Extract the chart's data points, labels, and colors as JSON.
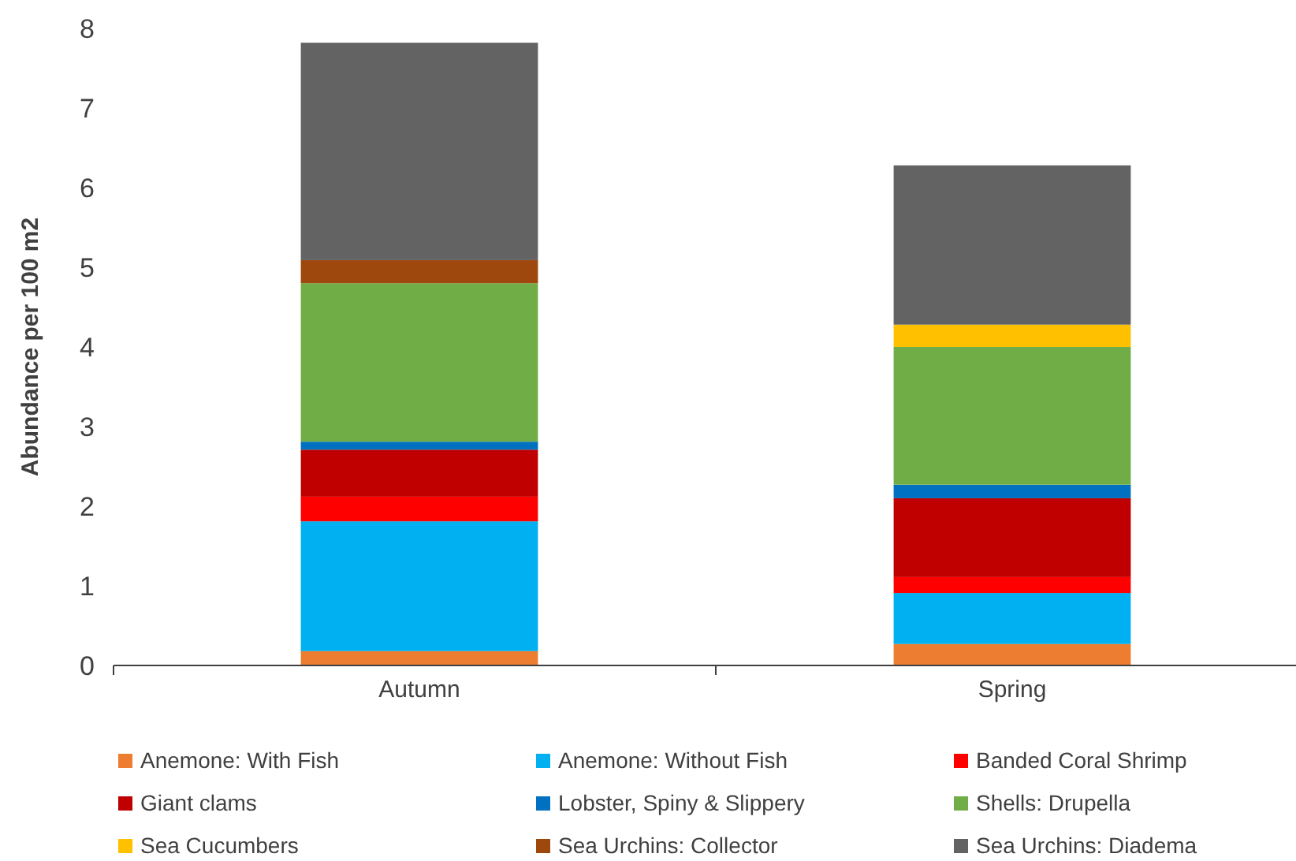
{
  "chart_data": {
    "type": "bar",
    "stacked": true,
    "ylabel": "Abundance per 100 m2",
    "categories": [
      "Autumn",
      "Spring"
    ],
    "ylim": [
      0,
      8
    ],
    "yticks": [
      0,
      1,
      2,
      3,
      4,
      5,
      6,
      7,
      8
    ],
    "grid": false,
    "legend": "bottom",
    "series": [
      {
        "name": "Anemone: With Fish",
        "color": "#ed7d31",
        "values": [
          0.18,
          0.27
        ]
      },
      {
        "name": "Anemone: Without Fish",
        "color": "#00b0f0",
        "values": [
          1.63,
          0.64
        ]
      },
      {
        "name": "Banded Coral Shrimp",
        "color": "#ff0000",
        "values": [
          0.31,
          0.2
        ]
      },
      {
        "name": "Giant clams",
        "color": "#c00000",
        "values": [
          0.59,
          0.99
        ]
      },
      {
        "name": "Lobster, Spiny & Slippery",
        "color": "#0070c0",
        "values": [
          0.1,
          0.17
        ]
      },
      {
        "name": "Shells: Drupella",
        "color": "#70ad47",
        "values": [
          1.99,
          1.73
        ]
      },
      {
        "name": "Sea Cucumbers",
        "color": "#ffc000",
        "values": [
          0,
          0.28
        ]
      },
      {
        "name": "Sea Urchins: Collector",
        "color": "#9e480e",
        "values": [
          0.29,
          0
        ]
      },
      {
        "name": "Sea Urchins: Diadema",
        "color": "#636363",
        "values": [
          2.73,
          2.0
        ]
      }
    ]
  }
}
